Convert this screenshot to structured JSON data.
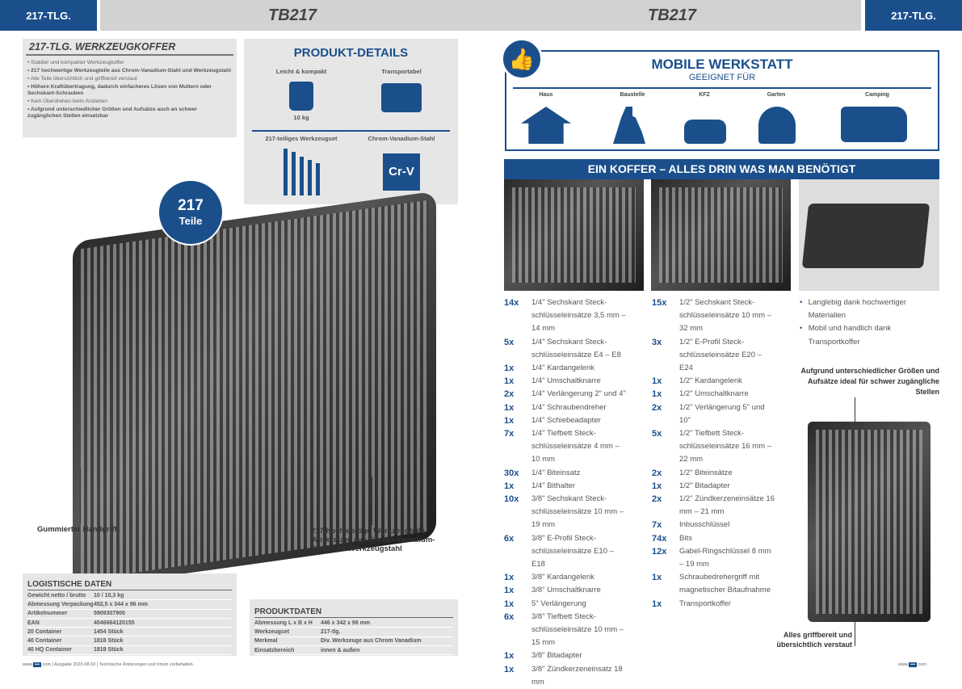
{
  "header": {
    "left_tag": "217-TLG.",
    "title_left": "TB217",
    "title_right": "TB217",
    "right_tag": "217-TLG."
  },
  "intro": {
    "title": "217-TLG. WERKZEUGKOFFER",
    "bullets": [
      {
        "text": "Stabiler und kompakter Werkzeugkoffer",
        "bold": false
      },
      {
        "text": "217 hochwertige Werkzeugteile aus Chrom-Vanadium-Stahl und Werkzeugstahl",
        "bold": true
      },
      {
        "text": "Alle Teile übersichtlich und griffbereit verstaut",
        "bold": false
      },
      {
        "text": "Höhere Kraftübertragung, dadurch einfacheres Lösen von Muttern oder Sechskant-Schrauben",
        "bold": true
      },
      {
        "text": "Kein Überdrehen beim Anziehen",
        "bold": false
      },
      {
        "text": "Aufgrund unterschiedlicher Größen und Aufsätze auch an schwer zugänglichen Stellen einsetzbar",
        "bold": true
      }
    ]
  },
  "product_details": {
    "title": "PRODUKT-DETAILS",
    "items": [
      {
        "label": "Leicht & kompakt",
        "icon": "weight-feather-icon",
        "sub": "10 kg"
      },
      {
        "label": "Transportabel",
        "icon": "toolbox-icon"
      },
      {
        "label": "217-teiliges Werkzeugset",
        "icon": "screwdrivers-icon"
      },
      {
        "label": "Chrom-Vanadium-Stahl",
        "icon": "crv-icon",
        "badge": "Cr-V"
      }
    ]
  },
  "badge": {
    "number": "217",
    "label": "Teile"
  },
  "callouts": {
    "handle": "Gummierter Handgriff",
    "tools": "217 hochwertige Werkzeugteile Werkzeuge aus Chrom-Vanadium-Stahl und Werkzeugstahl"
  },
  "logistics": {
    "title": "LOGISTISCHE DATEN",
    "rows": [
      [
        "Gewicht netto / brutto",
        "10 / 10,3 kg"
      ],
      [
        "Abmessung Verpackung",
        "452,5 x 344 x 96 mm"
      ],
      [
        "Artikelnummer",
        "5909307900"
      ],
      [
        "EAN",
        "4046664120155"
      ],
      [
        "20 Container",
        "1454 Stück"
      ],
      [
        "40 Container",
        "1818 Stück"
      ],
      [
        "40 HQ Container",
        "1818 Stück"
      ]
    ]
  },
  "produktdaten": {
    "title": "PRODUKTDATEN",
    "rows": [
      [
        "Abmessung L x B x H",
        "446 x 342 x 96 mm"
      ],
      [
        "Werkzeugset",
        "217-tlg."
      ],
      [
        "Merkmal",
        "Div. Werkzeuge aus Chrom Vanadium"
      ],
      [
        "Einsatzbereich",
        "innen & außen"
      ]
    ]
  },
  "footer_left": {
    "pre": "www.",
    "post": ".com | Ausgabe 2023-08-02 | Technische Änderungen und Irrtum vorbehalten."
  },
  "footer_right": {
    "pre": "www.",
    "post": ".com"
  },
  "mobile": {
    "title": "MOBILE WERKSTATT",
    "subtitle": "GEEIGNET FÜR",
    "categories": [
      {
        "label": "Haus",
        "icon": "house-icon"
      },
      {
        "label": "Baustelle",
        "icon": "construction-worker-icon"
      },
      {
        "label": "KFZ",
        "icon": "car-icon"
      },
      {
        "label": "Garten",
        "icon": "garden-icon"
      },
      {
        "label": "Camping",
        "icon": "camper-icon"
      }
    ]
  },
  "banner": "EIN KOFFER – ALLES DRIN WAS MAN BENÖTIGT",
  "list_left": [
    [
      "14x",
      "1/4\" Sechskant Steck-schlüsseleinsätze 3,5 mm – 14 mm"
    ],
    [
      "5x",
      "1/4\" Sechskant Steck-schlüsseleinsätze E4 – E8"
    ],
    [
      "1x",
      "1/4\" Kardangelenk"
    ],
    [
      "1x",
      "1/4\" Umschaltknarre"
    ],
    [
      "2x",
      "1/4\" Verlängerung 2\" und 4\""
    ],
    [
      "1x",
      "1/4\" Schraubendreher"
    ],
    [
      "1x",
      "1/4\" Schiebeadapter"
    ],
    [
      "7x",
      "1/4\" Tiefbett Steck-schlüsseleinsätze 4 mm – 10 mm"
    ],
    [
      "30x",
      "1/4\" Biteinsatz"
    ],
    [
      "1x",
      "1/4\" Bithalter"
    ],
    [
      "10x",
      "3/8\" Sechskant Steck-schlüsseleinsätze 10 mm – 19 mm"
    ],
    [
      "6x",
      "3/8\" E-Profil Steck-schlüsseleinsätze E10 – E18"
    ],
    [
      "1x",
      "3/8\" Kardangelenk"
    ],
    [
      "1x",
      "3/8\" Umschaltknarre"
    ],
    [
      "1x",
      "5\" Verlängerung"
    ],
    [
      "6x",
      "3/8\" Tiefbett Steck-schlüsseleinsätze 10 mm – 15 mm"
    ],
    [
      "1x",
      "3/8\" Bitadapter"
    ],
    [
      "1x",
      "3/8\" Zündkerzeneinsatz 18 mm"
    ]
  ],
  "list_mid": [
    [
      "15x",
      "1/2\" Sechskant Steck-schlüsseleinsätze 10 mm – 32 mm"
    ],
    [
      "3x",
      "1/2\" E-Profil Steck-schlüsseleinsätze E20 – E24"
    ],
    [
      "1x",
      "1/2\" Kardangelenk"
    ],
    [
      "1x",
      "1/2\" Umschaltknarre"
    ],
    [
      "2x",
      "1/2\" Verlängerung 5\" und 10\""
    ],
    [
      "5x",
      "1/2\" Tiefbett Steck-schlüsseleinsätze 16 mm – 22 mm"
    ],
    [
      "2x",
      "1/2\" Biteinsätze"
    ],
    [
      "1x",
      "1/2\" Bitadapter"
    ],
    [
      "2x",
      "1/2\" Zündkerzeneinsätze 16 mm – 21 mm"
    ],
    [
      "7x",
      "Inbusschlüssel"
    ],
    [
      "74x",
      "Bits"
    ],
    [
      "12x",
      "Gabel-Ringschlüssel 8 mm – 19 mm"
    ],
    [
      "1x",
      "Schraubedrehergriff mit magnetischer Bitaufnahme"
    ],
    [
      "1x",
      "Transportkoffer"
    ]
  ],
  "features": [
    "Langlebig dank hochwertiger Materialien",
    "Mobil und handlich dank Transportkoffer"
  ],
  "right_callouts": {
    "top": "Aufgrund unterschiedlicher Größen und Aufsätze ideal für schwer zugängliche Stellen",
    "bottom": "Alles griffbereit und übersichtlich verstaut"
  },
  "colors": {
    "brand_blue": "#1b4f8c",
    "header_gray": "#d2d2d2",
    "panel_gray": "#e6e6e6"
  }
}
